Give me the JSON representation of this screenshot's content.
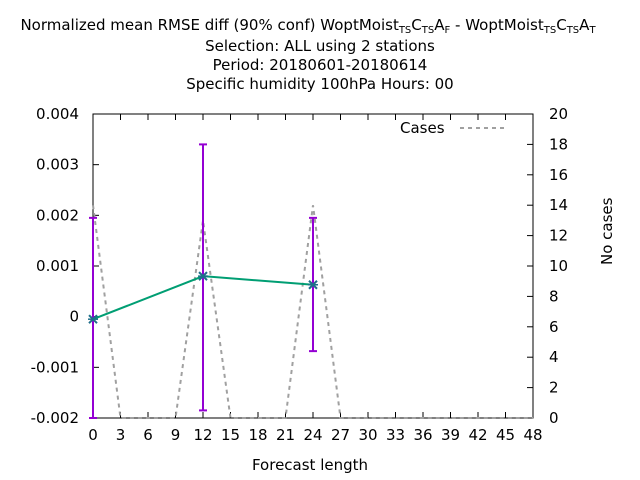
{
  "title": {
    "prefix": "Normalized mean RMSE diff (90% conf) WoptMoist",
    "exp1_subs": [
      "TS",
      "C",
      "TS",
      "A",
      "F"
    ],
    "exp1_letters": [
      "",
      "",
      "",
      "",
      ""
    ],
    "line1_full": "Normalized mean RMSE diff (90% conf) WoptMoist_TS C_TS A_F - WoptMoist_TS C_TS A_T",
    "line2": "Selection: ALL using     2 stations",
    "line3": "Period: 20180601-20180614",
    "line4": "Specific humidity 100hPa   Hours:  00"
  },
  "legend": {
    "cases_label": "Cases"
  },
  "colors": {
    "diff": "#009e73",
    "errorbar": "#9400d3",
    "cases": "#a0a0a0"
  },
  "chart_data": {
    "type": "line",
    "xlabel": "Forecast length",
    "ylabel_right": "No cases",
    "xlim": [
      0,
      48
    ],
    "ylim": [
      -0.002,
      0.004
    ],
    "y2lim": [
      0,
      20
    ],
    "x_ticks": [
      0,
      3,
      6,
      9,
      12,
      15,
      18,
      21,
      24,
      27,
      30,
      33,
      36,
      39,
      42,
      45,
      48
    ],
    "y_ticks": [
      -0.002,
      -0.001,
      0,
      0.001,
      0.002,
      0.003,
      0.004
    ],
    "y_tick_labels": [
      "-0.002",
      "-0.001",
      "0",
      "0.001",
      "0.002",
      "0.003",
      "0.004"
    ],
    "y2_ticks": [
      0,
      2,
      4,
      6,
      8,
      10,
      12,
      14,
      16,
      18,
      20
    ],
    "series": [
      {
        "name": "",
        "x": [
          0,
          12,
          24
        ],
        "y": [
          -5e-05,
          0.0008,
          0.00063
        ],
        "err_low": [
          -0.002,
          -0.00185,
          -0.00068
        ],
        "err_high": [
          0.00195,
          0.0034,
          0.00195
        ]
      },
      {
        "name": "Cases",
        "axis": "y2",
        "x": [
          0,
          3,
          6,
          9,
          12,
          15,
          18,
          21,
          24,
          27,
          30,
          33,
          36,
          39,
          42,
          45,
          48
        ],
        "y": [
          14,
          0,
          0,
          0,
          13,
          0,
          0,
          0,
          14,
          0,
          0,
          0,
          0,
          0,
          0,
          0,
          0
        ]
      }
    ],
    "legend_position": "top-right",
    "grid": false
  }
}
